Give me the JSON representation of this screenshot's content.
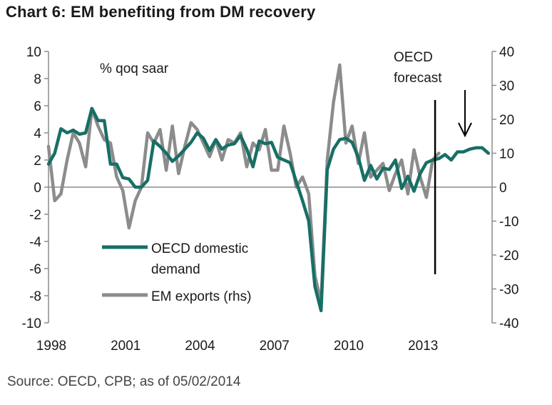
{
  "title": "Chart 6: EM benefiting from DM recovery",
  "source": "Source: OECD, CPB; as of 05/02/2014",
  "chart_data": {
    "type": "line",
    "title": "Chart 6: EM benefiting from DM recovery",
    "unit_label": "% qoq saar",
    "xlim": [
      1998.0,
      2015.9
    ],
    "x_ticks": [
      1998,
      2001,
      2004,
      2007,
      2010,
      2013
    ],
    "y_left": {
      "lim": [
        -10,
        10
      ],
      "ticks": [
        10,
        8,
        6,
        4,
        2,
        0,
        -2,
        -4,
        -6,
        -8,
        -10
      ]
    },
    "y_right": {
      "lim": [
        -40,
        40
      ],
      "ticks": [
        40,
        30,
        20,
        10,
        0,
        -10,
        -20,
        -30,
        -40
      ]
    },
    "forecast_start": 2013.6,
    "forecast_label": [
      "OECD",
      "forecast"
    ],
    "legend": [
      {
        "name": "OECD domestic demand",
        "lines": [
          "OECD domestic",
          "demand"
        ],
        "color": "#176f65"
      },
      {
        "name": "EM exports (rhs)",
        "lines": [
          "EM exports (rhs)"
        ],
        "color": "#8c8c8c"
      }
    ],
    "series": [
      {
        "name": "OECD domestic demand",
        "axis": "left",
        "color": "#176f65",
        "x": [
          1998.0,
          1998.25,
          1998.5,
          1998.75,
          1999.0,
          1999.25,
          1999.5,
          1999.75,
          2000.0,
          2000.25,
          2000.5,
          2000.75,
          2001.0,
          2001.25,
          2001.5,
          2001.75,
          2002.0,
          2002.25,
          2002.5,
          2002.75,
          2003.0,
          2003.25,
          2003.5,
          2003.75,
          2004.0,
          2004.25,
          2004.5,
          2004.75,
          2005.0,
          2005.25,
          2005.5,
          2005.75,
          2006.0,
          2006.25,
          2006.5,
          2006.75,
          2007.0,
          2007.25,
          2007.5,
          2007.75,
          2008.0,
          2008.25,
          2008.5,
          2008.75,
          2009.0,
          2009.25,
          2009.5,
          2009.75,
          2010.0,
          2010.25,
          2010.5,
          2010.75,
          2011.0,
          2011.25,
          2011.5,
          2011.75,
          2012.0,
          2012.25,
          2012.5,
          2012.75,
          2013.0,
          2013.25,
          2013.5,
          2013.75,
          2014.0,
          2014.25,
          2014.5,
          2014.75,
          2015.0,
          2015.25,
          2015.5,
          2015.75
        ],
        "values": [
          1.7,
          2.5,
          4.3,
          4.0,
          4.2,
          3.9,
          4.0,
          5.8,
          4.9,
          4.9,
          1.7,
          1.7,
          0.7,
          0.6,
          0.0,
          0.0,
          0.5,
          3.4,
          3.0,
          2.5,
          1.9,
          2.3,
          2.8,
          3.3,
          4.0,
          3.6,
          2.7,
          3.5,
          2.8,
          3.1,
          3.2,
          3.8,
          2.8,
          1.5,
          3.4,
          3.2,
          3.3,
          2.2,
          2.0,
          1.8,
          0.4,
          -1.0,
          -2.5,
          -7.3,
          -9.1,
          1.3,
          2.8,
          3.5,
          3.6,
          3.3,
          2.2,
          0.5,
          1.6,
          0.6,
          1.4,
          1.3,
          2.0,
          -0.1,
          0.8,
          -0.3,
          1.0,
          1.8,
          2.0,
          2.1,
          2.4,
          2.0,
          2.6,
          2.6,
          2.8,
          2.9,
          2.9,
          2.5
        ]
      },
      {
        "name": "EM exports (rhs)",
        "axis": "right",
        "color": "#8c8c8c",
        "x": [
          1998.0,
          1998.25,
          1998.5,
          1998.75,
          1999.0,
          1999.25,
          1999.5,
          1999.75,
          2000.0,
          2000.25,
          2000.5,
          2000.75,
          2001.0,
          2001.25,
          2001.5,
          2001.75,
          2002.0,
          2002.25,
          2002.5,
          2002.75,
          2003.0,
          2003.25,
          2003.5,
          2003.75,
          2004.0,
          2004.25,
          2004.5,
          2004.75,
          2005.0,
          2005.25,
          2005.5,
          2005.75,
          2006.0,
          2006.25,
          2006.5,
          2006.75,
          2007.0,
          2007.25,
          2007.5,
          2007.75,
          2008.0,
          2008.25,
          2008.5,
          2008.75,
          2009.0,
          2009.25,
          2009.5,
          2009.75,
          2010.0,
          2010.25,
          2010.5,
          2010.75,
          2011.0,
          2011.25,
          2011.5,
          2011.75,
          2012.0,
          2012.25,
          2012.5,
          2012.75,
          2013.0,
          2013.25,
          2013.5,
          2013.75
        ],
        "values": [
          12,
          -4,
          -2,
          8,
          16,
          13,
          6,
          23,
          18,
          14,
          13,
          3,
          -1,
          -12,
          -4,
          0,
          16,
          13,
          17,
          5,
          18,
          4,
          12,
          19,
          17,
          13,
          9,
          14,
          8,
          14,
          13,
          16,
          6,
          13,
          11,
          17,
          5,
          5,
          18,
          10,
          0,
          3,
          -2,
          -26,
          -34,
          8,
          25,
          36,
          13,
          18,
          7,
          16,
          3,
          5,
          7,
          -1,
          4,
          8,
          -2,
          11,
          3,
          -3,
          8,
          10
        ]
      }
    ]
  }
}
